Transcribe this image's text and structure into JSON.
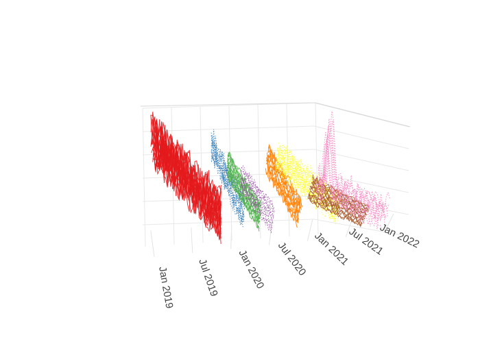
{
  "chart_data": {
    "type": "line",
    "projection": "3d",
    "title": "",
    "xlabel": "",
    "ylabel": "",
    "zlabel": "",
    "grid": true,
    "legend": "none",
    "x_axis": {
      "range": [
        "2019-01-01",
        "2022-01-01"
      ],
      "tick_labels": [
        {
          "label": "Jan 2019",
          "date": "2019-01-01"
        },
        {
          "label": "Jul 2019",
          "date": "2019-07-01"
        },
        {
          "label": "Jan 2020",
          "date": "2020-01-01"
        },
        {
          "label": "Jul 2020",
          "date": "2020-07-01"
        },
        {
          "label": "Jan 2021",
          "date": "2021-01-01"
        },
        {
          "label": "Jul 2021",
          "date": "2021-07-01"
        },
        {
          "label": "Jan 2022",
          "date": "2022-01-01"
        }
      ]
    },
    "series": [
      {
        "color": "#e41a1c",
        "dash": "solid",
        "start": "2019-01-01",
        "end": "2019-11-15",
        "level": 0.72,
        "noise": 0.3,
        "count": 24
      },
      {
        "color": "#377eb8",
        "dash": "dot",
        "start": "2019-10-01",
        "end": "2020-03-01",
        "level": 0.7,
        "noise": 0.12,
        "count": 10
      },
      {
        "color": "#4daf4a",
        "dash": "solid",
        "start": "2019-12-15",
        "end": "2020-05-15",
        "level": 0.55,
        "noise": 0.05,
        "count": 14
      },
      {
        "color": "#984ea3",
        "dash": "dot",
        "start": "2020-02-15",
        "end": "2020-07-15",
        "level": 0.45,
        "noise": 0.05,
        "count": 10
      },
      {
        "color": "#ff7f00",
        "dash": "solid",
        "start": "2020-06-15",
        "end": "2020-11-15",
        "level": 0.6,
        "noise": 0.08,
        "count": 12
      },
      {
        "color": "#ffff33",
        "dash": "dot",
        "start": "2020-08-01",
        "end": "2021-05-15",
        "level": 0.62,
        "noise": 0.12,
        "count": 18
      },
      {
        "color": "#a65628",
        "dash": "solid",
        "start": "2021-01-01",
        "end": "2021-09-15",
        "level": 0.35,
        "noise": 0.05,
        "count": 16
      },
      {
        "color": "#f781bf",
        "dash": "dot",
        "start": "2021-02-01",
        "end": "2021-12-15",
        "level": 0.4,
        "noise": 0.2,
        "count": 10
      }
    ]
  }
}
